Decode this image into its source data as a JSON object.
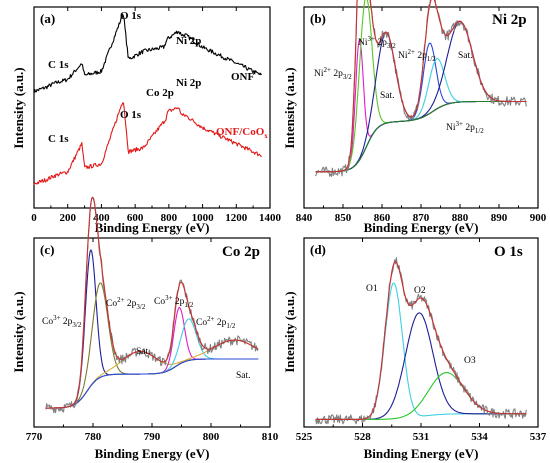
{
  "chart_data": [
    {
      "panel": "(a)",
      "type": "line",
      "title": "",
      "xlabel": "Binding Energy (eV)",
      "ylabel": "Intensity (a.u.)",
      "xlim": [
        0,
        1400
      ],
      "x_ticks": [
        "0",
        "200",
        "400",
        "600",
        "800",
        "1000",
        "1200",
        "1400"
      ],
      "colors": {
        "ONF": "#000000",
        "ONF/CoOx": "#e11919"
      },
      "series": [
        {
          "name": "ONF",
          "x": [
            0,
            70,
            120,
            200,
            284,
            300,
            400,
            530,
            560,
            650,
            770,
            790,
            855,
            880,
            900,
            1000,
            1100,
            1200,
            1300,
            1350
          ],
          "y": [
            0.58,
            0.6,
            0.62,
            0.64,
            0.72,
            0.66,
            0.68,
            0.97,
            0.74,
            0.78,
            0.8,
            0.84,
            0.88,
            0.86,
            0.86,
            0.8,
            0.76,
            0.72,
            0.68,
            0.66
          ]
        },
        {
          "name": "ONF/CoOx",
          "x": [
            0,
            70,
            120,
            200,
            284,
            300,
            400,
            530,
            560,
            650,
            780,
            795,
            855,
            880,
            900,
            1000,
            1100,
            1200,
            1300,
            1350
          ],
          "y": [
            0.12,
            0.14,
            0.16,
            0.18,
            0.32,
            0.2,
            0.22,
            0.54,
            0.28,
            0.3,
            0.44,
            0.48,
            0.5,
            0.46,
            0.46,
            0.4,
            0.36,
            0.32,
            0.28,
            0.26
          ]
        }
      ],
      "annotations": [
        {
          "text": "O 1s",
          "series": "ONF",
          "x": 530
        },
        {
          "text": "C 1s",
          "series": "ONF",
          "x": 284
        },
        {
          "text": "Ni 2p",
          "series": "ONF",
          "x": 855
        },
        {
          "text": "ONF",
          "series": "ONF",
          "x": 1250
        },
        {
          "text": "O 1s",
          "series": "ONF/CoOx",
          "x": 530
        },
        {
          "text": "C 1s",
          "series": "ONF/CoOx",
          "x": 284
        },
        {
          "text": "Co 2p",
          "series": "ONF/CoOx",
          "x": 780
        },
        {
          "text": "Ni 2p",
          "series": "ONF/CoOx",
          "x": 855
        },
        {
          "text": "ONF/CoO",
          "sub": "x",
          "series": "ONF/CoOx",
          "x": 1250
        }
      ]
    },
    {
      "panel": "(b)",
      "type": "line",
      "title": "Ni 2p",
      "xlabel": "Binding Energy (eV)",
      "ylabel": "Intensity (a.u.)",
      "xlim": [
        840,
        900
      ],
      "x_ticks": [
        "840",
        "850",
        "860",
        "870",
        "880",
        "890",
        "900"
      ],
      "colors": {
        "measured": "#808080",
        "fit": "#c83232",
        "Ni2+ 2p3/2": "#e01ccc",
        "Ni3+ 2p3/2": "#58c828",
        "Sat.": "#1e1e96",
        "Ni2+ 2p1/2": "#2a4ad6",
        "Ni3+ 2p1/2": "#3ed0e0",
        "background": "#2a7a2a"
      },
      "peaks": [
        {
          "label": "Ni2+ 2p3/2",
          "center": 854.2,
          "height": 0.6
        },
        {
          "label": "Ni3+ 2p3/2",
          "center": 855.8,
          "height": 0.75
        },
        {
          "label": "Sat.",
          "center": 861.0,
          "height": 0.45
        },
        {
          "label": "Ni2+ 2p1/2",
          "center": 872.2,
          "height": 0.35
        },
        {
          "label": "Ni3+ 2p1/2",
          "center": 874.0,
          "height": 0.25
        },
        {
          "label": "Sat.",
          "center": 880.0,
          "height": 0.4
        }
      ],
      "annotations": [
        {
          "text": "Ni",
          "sup": "3+",
          "after": " 2p",
          "sub": "3/2"
        },
        {
          "text": "Ni",
          "sup": "2+",
          "after": " 2p",
          "sub": "3/2"
        },
        {
          "text": "Sat."
        },
        {
          "text": "Ni",
          "sup": "2+",
          "after": " 2p",
          "sub": "1/2"
        },
        {
          "text": "Sat."
        },
        {
          "text": "Ni",
          "sup": "3+",
          "after": " 2p",
          "sub": "1/2"
        }
      ]
    },
    {
      "panel": "(c)",
      "type": "line",
      "title": "Co 2p",
      "xlabel": "Binding Energy (eV)",
      "ylabel": "Intensity (a.u.)",
      "xlim": [
        770,
        810
      ],
      "x_ticks": [
        "770",
        "780",
        "790",
        "800",
        "810"
      ],
      "colors": {
        "measured": "#808080",
        "fit": "#c83232",
        "Co3+ 2p3/2": "#1e1e96",
        "Co2+ 2p3/2": "#7a7a30",
        "Sat.": "#d8b040",
        "Co3+ 2p1/2": "#e01ccc",
        "Co2+ 2p1/2": "#3ed0e0",
        "background": "#2a4ad6"
      },
      "peaks": [
        {
          "label": "Co3+ 2p3/2",
          "center": 779.6,
          "height": 0.72
        },
        {
          "label": "Co2+ 2p3/2",
          "center": 781.2,
          "height": 0.5
        },
        {
          "label": "Sat.",
          "center": 788.0,
          "height": 0.12
        },
        {
          "label": "Co3+ 2p1/2",
          "center": 794.6,
          "height": 0.3
        },
        {
          "label": "Co2+ 2p1/2",
          "center": 796.2,
          "height": 0.22
        },
        {
          "label": "Sat.",
          "center": 804.0,
          "height": 0.1
        }
      ],
      "annotations": [
        {
          "text": "Co",
          "sup": "3+",
          "after": " 2p",
          "sub": "3/2"
        },
        {
          "text": "Co",
          "sup": "2+",
          "after": " 2p",
          "sub": "3/2"
        },
        {
          "text": "Sat."
        },
        {
          "text": "Co",
          "sup": "3+",
          "after": " 2p",
          "sub": "1/2"
        },
        {
          "text": "Co",
          "sup": "2+",
          "after": " 2p",
          "sub": "1/2"
        },
        {
          "text": "Sat."
        }
      ]
    },
    {
      "panel": "(d)",
      "type": "line",
      "title": "O 1s",
      "xlabel": "Binding Energy (eV)",
      "ylabel": "Intensity (a.u.)",
      "xlim": [
        525,
        537
      ],
      "x_ticks": [
        "525",
        "528",
        "531",
        "534",
        "537"
      ],
      "colors": {
        "measured": "#808080",
        "fit": "#c83232",
        "O1": "#3ed0e0",
        "O2": "#1e1e96",
        "O3": "#28c828"
      },
      "peaks": [
        {
          "label": "O1",
          "center": 529.6,
          "height": 0.72
        },
        {
          "label": "O2",
          "center": 530.9,
          "height": 0.55
        },
        {
          "label": "O3",
          "center": 532.3,
          "height": 0.22
        }
      ],
      "annotations": [
        {
          "text": "O1"
        },
        {
          "text": "O2"
        },
        {
          "text": "O3"
        }
      ]
    }
  ]
}
